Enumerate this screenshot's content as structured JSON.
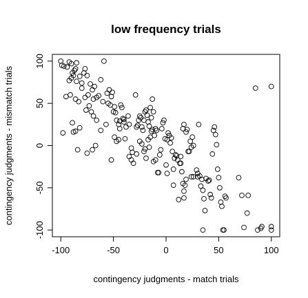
{
  "chart_data": {
    "type": "scatter",
    "title": "low frequency trials",
    "xlabel": "contingency judgments - match trials",
    "ylabel": "contingency judgments - mismatch trials",
    "xlim": [
      -108,
      108
    ],
    "ylim": [
      -108,
      108
    ],
    "xticks": [
      -100,
      -50,
      0,
      50,
      100
    ],
    "yticks": [
      -100,
      -50,
      0,
      50,
      100
    ],
    "xtick_labels": [
      "-100",
      "-50",
      "0",
      "50",
      "100"
    ],
    "ytick_labels": [
      "-100",
      "-50",
      "0",
      "50",
      "100"
    ],
    "grid": false,
    "legend": "none",
    "series": [
      {
        "marker": "open-circle",
        "points": [
          [
            -100,
            100
          ],
          [
            -99,
            95
          ],
          [
            -97,
            94
          ],
          [
            -94,
            93
          ],
          [
            -92,
            99
          ],
          [
            -90,
            97
          ],
          [
            -89,
            86
          ],
          [
            -87,
            89
          ],
          [
            -86,
            91
          ],
          [
            -85,
            98
          ],
          [
            -95,
            58
          ],
          [
            -92,
            77
          ],
          [
            -90,
            80
          ],
          [
            -88,
            83
          ],
          [
            -85,
            76
          ],
          [
            -82,
            82
          ],
          [
            -80,
            74
          ],
          [
            -78,
            86
          ],
          [
            -77,
            91
          ],
          [
            -75,
            83
          ],
          [
            -74,
            60
          ],
          [
            -72,
            73
          ],
          [
            -70,
            66
          ],
          [
            -69,
            55
          ],
          [
            -68,
            70
          ],
          [
            -66,
            57
          ],
          [
            -64,
            59
          ],
          [
            -62,
            78
          ],
          [
            -60,
            52
          ],
          [
            -59,
            100
          ],
          [
            -91,
            60
          ],
          [
            -86,
            55
          ],
          [
            -83,
            52
          ],
          [
            -80,
            68
          ],
          [
            -77,
            57
          ],
          [
            -76,
            42
          ],
          [
            -73,
            47
          ],
          [
            -71,
            40
          ],
          [
            -69,
            35
          ],
          [
            -66,
            30
          ],
          [
            -98,
            15
          ],
          [
            -89,
            27
          ],
          [
            -88,
            16
          ],
          [
            -86,
            17
          ],
          [
            -84,
            -5
          ],
          [
            -82,
            21
          ],
          [
            -75,
            -9
          ],
          [
            -70,
            -5
          ],
          [
            -67,
            0
          ],
          [
            -62,
            18
          ],
          [
            -57,
            25
          ],
          [
            -56,
            62
          ],
          [
            -55,
            50
          ],
          [
            -54,
            66
          ],
          [
            -53,
            48
          ],
          [
            -52,
            58
          ],
          [
            -51,
            63
          ],
          [
            -50,
            40
          ],
          [
            -49,
            46
          ],
          [
            -48,
            39
          ],
          [
            -47,
            30
          ],
          [
            -45,
            25
          ],
          [
            -44,
            20
          ],
          [
            -43,
            48
          ],
          [
            -42,
            45
          ],
          [
            -41,
            32
          ],
          [
            -40,
            28
          ],
          [
            -39,
            8
          ],
          [
            -38,
            22
          ],
          [
            -36,
            35
          ],
          [
            -52,
            -17
          ],
          [
            -49,
            10
          ],
          [
            -47,
            5
          ],
          [
            -45,
            7
          ],
          [
            -44,
            29
          ],
          [
            -40,
            31
          ],
          [
            -35,
            25
          ],
          [
            -33,
            -3
          ],
          [
            -32,
            -8
          ],
          [
            -31,
            -21
          ],
          [
            -29,
            60
          ],
          [
            -28,
            22
          ],
          [
            -27,
            24
          ],
          [
            -26,
            30
          ],
          [
            -25,
            35
          ],
          [
            -24,
            33
          ],
          [
            -23,
            22
          ],
          [
            -22,
            18
          ],
          [
            -21,
            30
          ],
          [
            -20,
            40
          ],
          [
            -19,
            42
          ],
          [
            -18,
            36
          ],
          [
            -17,
            28
          ],
          [
            -16,
            23
          ],
          [
            -15,
            45
          ],
          [
            -14,
            33
          ],
          [
            -13,
            55
          ],
          [
            -12,
            40
          ],
          [
            -11,
            12
          ],
          [
            -10,
            20
          ],
          [
            -35,
            -13
          ],
          [
            -33,
            -17
          ],
          [
            -28,
            -10
          ],
          [
            -25,
            5
          ],
          [
            -23,
            2
          ],
          [
            -21,
            -7
          ],
          [
            -20,
            -4
          ],
          [
            -19,
            -15
          ],
          [
            -17,
            7
          ],
          [
            -16,
            -2
          ],
          [
            -15,
            10
          ],
          [
            -14,
            17
          ],
          [
            -13,
            19
          ],
          [
            -12,
            -19
          ],
          [
            -10,
            -17
          ],
          [
            -9,
            18
          ],
          [
            -8,
            -32
          ],
          [
            -7,
            -32
          ],
          [
            -6,
            -11
          ],
          [
            -5,
            -5
          ],
          [
            -3,
            27
          ],
          [
            -2,
            30
          ],
          [
            -1,
            8
          ],
          [
            0,
            -23
          ],
          [
            1,
            7
          ],
          [
            2,
            15
          ],
          [
            3,
            12
          ],
          [
            4,
            3
          ],
          [
            5,
            9
          ],
          [
            6,
            -7
          ],
          [
            7,
            -28
          ],
          [
            8,
            -15
          ],
          [
            9,
            -11
          ],
          [
            10,
            -12
          ],
          [
            11,
            -17
          ],
          [
            12,
            -64
          ],
          [
            13,
            -21
          ],
          [
            14,
            -13
          ],
          [
            15,
            -31
          ],
          [
            16,
            -45
          ],
          [
            17,
            -54
          ],
          [
            18,
            -47
          ],
          [
            19,
            16
          ],
          [
            20,
            19
          ],
          [
            21,
            -7
          ],
          [
            22,
            -7
          ],
          [
            23,
            5
          ],
          [
            24,
            -37
          ],
          [
            25,
            10
          ],
          [
            26,
            -37
          ],
          [
            -4,
            20
          ],
          [
            1,
            -33
          ],
          [
            7,
            -47
          ],
          [
            14,
            -21
          ],
          [
            16,
            20
          ],
          [
            17,
            25
          ],
          [
            17,
            -62
          ],
          [
            19,
            -40
          ],
          [
            24,
            -2
          ],
          [
            26,
            0
          ],
          [
            29,
            -29
          ],
          [
            30,
            -33
          ],
          [
            31,
            25
          ],
          [
            32,
            -36
          ],
          [
            33,
            -48
          ],
          [
            34,
            -40
          ],
          [
            35,
            -53
          ],
          [
            36,
            -63
          ],
          [
            37,
            -77
          ],
          [
            38,
            -39
          ],
          [
            40,
            -42
          ],
          [
            41,
            -41
          ],
          [
            42,
            -58
          ],
          [
            43,
            -62
          ],
          [
            44,
            -10
          ],
          [
            45,
            18
          ],
          [
            46,
            22
          ],
          [
            47,
            13
          ],
          [
            48,
            1
          ],
          [
            49,
            -28
          ],
          [
            30,
            -37
          ],
          [
            35,
            -100
          ],
          [
            50,
            -38
          ],
          [
            51,
            -50
          ],
          [
            52,
            -67
          ],
          [
            53,
            -72
          ],
          [
            54,
            -100
          ],
          [
            55,
            -100
          ],
          [
            56,
            -60
          ],
          [
            57,
            -62
          ],
          [
            69,
            -38
          ],
          [
            72,
            -59
          ],
          [
            74,
            -97
          ],
          [
            77,
            -80
          ],
          [
            78,
            -59
          ],
          [
            85,
            68
          ],
          [
            87,
            -100
          ],
          [
            90,
            -98
          ],
          [
            91,
            -96
          ],
          [
            100,
            70
          ],
          [
            100,
            -96
          ],
          [
            100,
            -100
          ]
        ]
      }
    ]
  }
}
